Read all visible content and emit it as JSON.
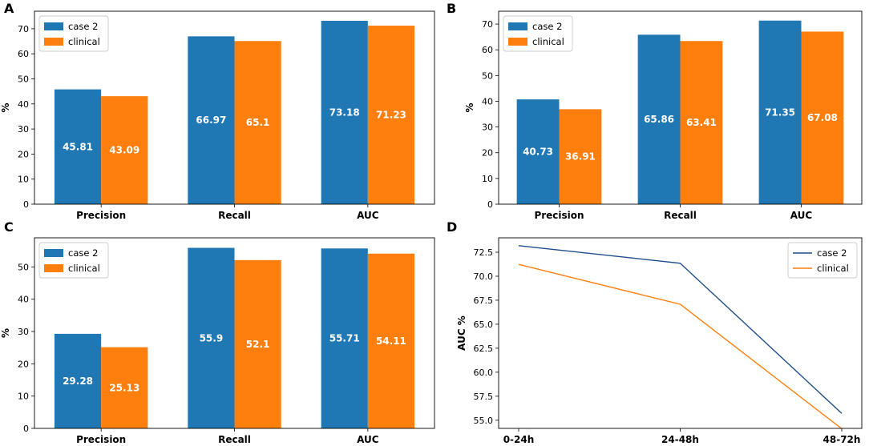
{
  "chart_data": [
    {
      "panel_label": "A",
      "type": "bar",
      "categories": [
        "Precision",
        "Recall",
        "AUC"
      ],
      "series": [
        {
          "name": "case 2",
          "values": [
            45.81,
            66.97,
            73.18
          ],
          "labels": [
            "45.81",
            "66.97",
            "73.18"
          ],
          "color": "#1f77b4"
        },
        {
          "name": "clinical",
          "values": [
            43.09,
            65.1,
            71.23
          ],
          "labels": [
            "43.09",
            "65.1",
            "71.23"
          ],
          "color": "#ff7f0e"
        }
      ],
      "ylabel": "%",
      "ylim": [
        0,
        77
      ],
      "yticks": [
        0,
        10,
        20,
        30,
        40,
        50,
        60,
        70
      ],
      "ytick_labels": [
        "0",
        "10",
        "20",
        "30",
        "40",
        "50",
        "60",
        "70"
      ],
      "legend_position": "top-left"
    },
    {
      "panel_label": "B",
      "type": "bar",
      "categories": [
        "Precision",
        "Recall",
        "AUC"
      ],
      "series": [
        {
          "name": "case 2",
          "values": [
            40.73,
            65.86,
            71.35
          ],
          "labels": [
            "40.73",
            "65.86",
            "71.35"
          ],
          "color": "#1f77b4"
        },
        {
          "name": "clinical",
          "values": [
            36.91,
            63.41,
            67.08
          ],
          "labels": [
            "36.91",
            "63.41",
            "67.08"
          ],
          "color": "#ff7f0e"
        }
      ],
      "ylabel": "%",
      "ylim": [
        0,
        75
      ],
      "yticks": [
        0,
        10,
        20,
        30,
        40,
        50,
        60,
        70
      ],
      "ytick_labels": [
        "0",
        "10",
        "20",
        "30",
        "40",
        "50",
        "60",
        "70"
      ],
      "legend_position": "top-left"
    },
    {
      "panel_label": "C",
      "type": "bar",
      "categories": [
        "Precision",
        "Recall",
        "AUC"
      ],
      "series": [
        {
          "name": "case 2",
          "values": [
            29.28,
            55.9,
            55.71
          ],
          "labels": [
            "29.28",
            "55.9",
            "55.71"
          ],
          "color": "#1f77b4"
        },
        {
          "name": "clinical",
          "values": [
            25.13,
            52.1,
            54.11
          ],
          "labels": [
            "25.13",
            "52.1",
            "54.11"
          ],
          "color": "#ff7f0e"
        }
      ],
      "ylabel": "%",
      "ylim": [
        0,
        59
      ],
      "yticks": [
        0,
        10,
        20,
        30,
        40,
        50
      ],
      "ytick_labels": [
        "0",
        "10",
        "20",
        "30",
        "40",
        "50"
      ],
      "legend_position": "top-left"
    },
    {
      "panel_label": "D",
      "type": "line",
      "categories": [
        "0-24h",
        "24-48h",
        "48-72h"
      ],
      "series": [
        {
          "name": "case 2",
          "values": [
            73.18,
            71.35,
            55.71
          ],
          "color": "#1f4e89"
        },
        {
          "name": "clinical",
          "values": [
            71.23,
            67.08,
            54.11
          ],
          "color": "#ff7f0e"
        }
      ],
      "ylabel": "AUC %",
      "ylim": [
        54.15,
        74.0
      ],
      "yticks": [
        55.0,
        57.5,
        60.0,
        62.5,
        65.0,
        67.5,
        70.0,
        72.5
      ],
      "ytick_labels": [
        "55.0",
        "57.5",
        "60.0",
        "62.5",
        "65.0",
        "67.5",
        "70.0",
        "72.5"
      ],
      "legend_position": "top-right"
    }
  ]
}
